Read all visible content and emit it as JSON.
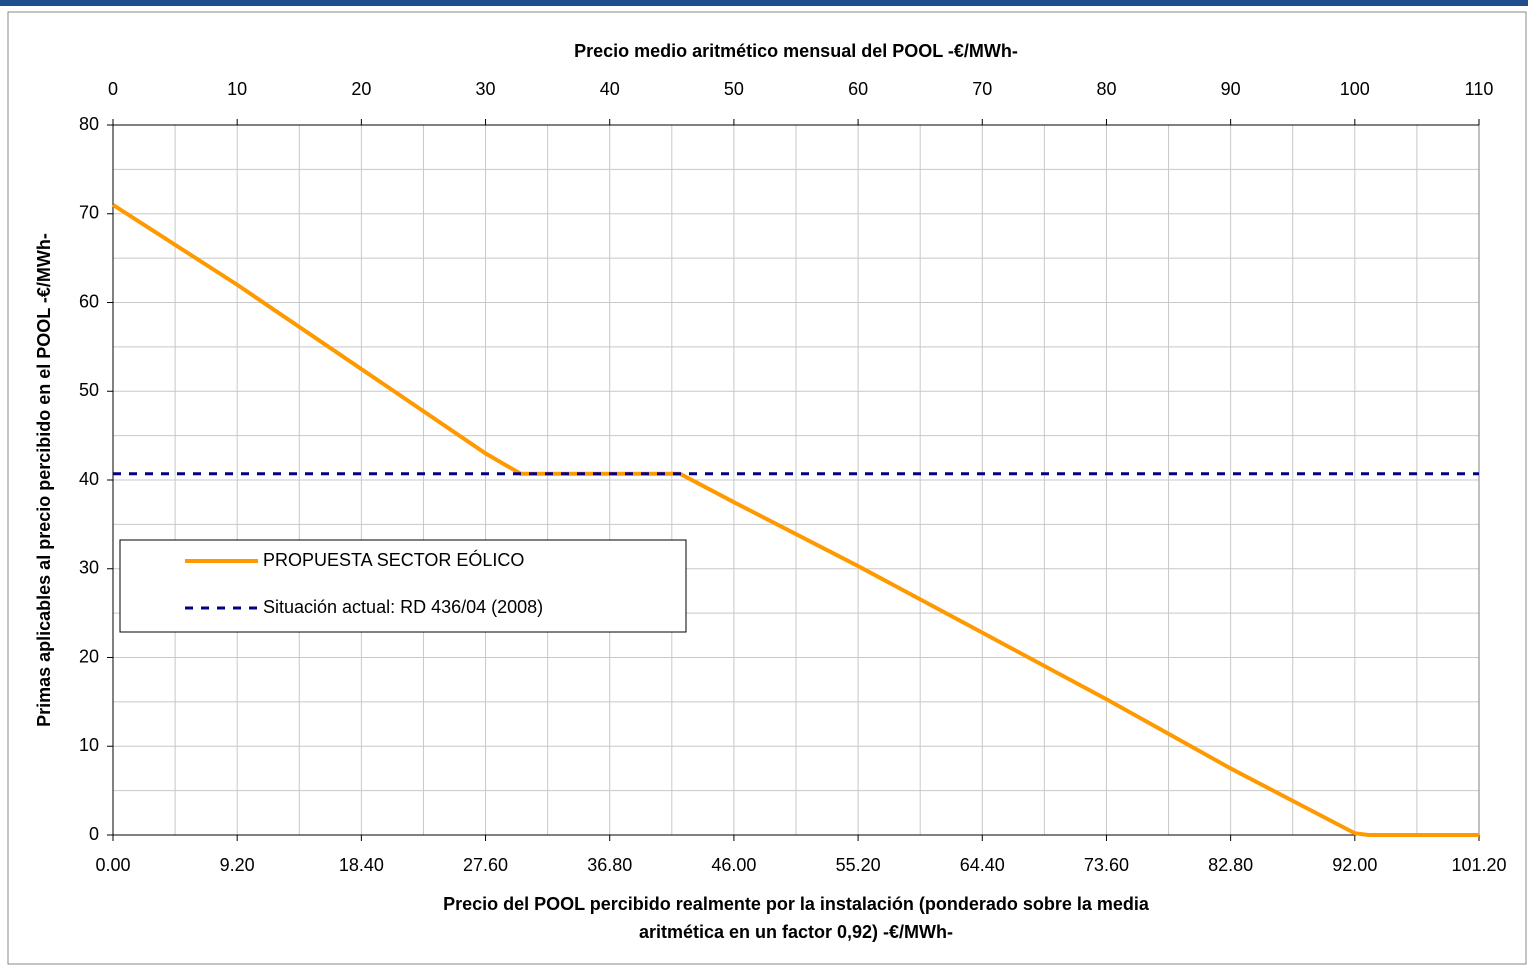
{
  "chart_data": {
    "type": "line",
    "title": "Precio medio aritmético mensual del POOL  -€/MWh-",
    "xlabel": [
      "Precio del POOL percibido realmente por la instalación (ponderado sobre la media",
      "aritmética en un factor 0,92)  -€/MWh-"
    ],
    "ylabel": "Primas aplicables al precio percibido en el POOL -€/MWh-",
    "xlim": [
      0,
      101.2
    ],
    "xticks": [
      {
        "value": 0,
        "label": "0.00"
      },
      {
        "value": 9.2,
        "label": "9.20"
      },
      {
        "value": 18.4,
        "label": "18.40"
      },
      {
        "value": 27.6,
        "label": "27.60"
      },
      {
        "value": 36.8,
        "label": "36.80"
      },
      {
        "value": 46,
        "label": "46.00"
      },
      {
        "value": 55.2,
        "label": "55.20"
      },
      {
        "value": 64.4,
        "label": "64.40"
      },
      {
        "value": 73.6,
        "label": "73.60"
      },
      {
        "value": 82.8,
        "label": "82.80"
      },
      {
        "value": 92,
        "label": "92.00"
      },
      {
        "value": 101.2,
        "label": "101.20"
      }
    ],
    "x2lim": [
      0,
      110
    ],
    "x2ticks": [
      0,
      10,
      20,
      30,
      40,
      50,
      60,
      70,
      80,
      90,
      100,
      110
    ],
    "ylim": [
      0,
      80
    ],
    "yticks": [
      0,
      10,
      20,
      30,
      40,
      50,
      60,
      70,
      80
    ],
    "grid": true,
    "legend": "lower-left",
    "series": [
      {
        "name": "PROPUESTA SECTOR EÓLICO",
        "color": "#ff9900",
        "style": "solid",
        "x": [
          0,
          9.2,
          18.4,
          27.6,
          30.2,
          42,
          46,
          55.2,
          64.4,
          73.6,
          82.8,
          92,
          93,
          101.2
        ],
        "values": [
          71,
          62,
          52.5,
          43,
          40.7,
          40.7,
          37.5,
          30.3,
          22.8,
          15.3,
          7.5,
          0.2,
          0,
          0
        ]
      },
      {
        "name": "Situación actual: RD 436/04 (2008)",
        "color": "#000080",
        "style": "dashed",
        "x": [
          0,
          101.2
        ],
        "values": [
          40.7,
          40.7
        ]
      }
    ]
  }
}
